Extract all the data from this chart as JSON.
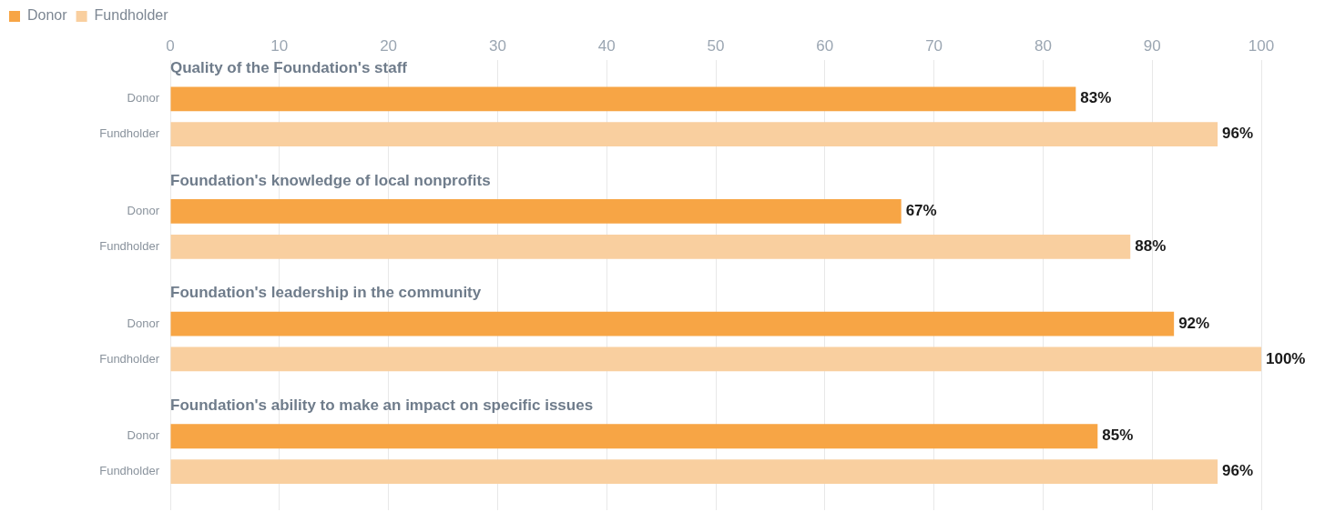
{
  "chart_data": {
    "type": "bar",
    "orientation": "horizontal",
    "categories": [
      "Quality of the Foundation's staff",
      "Foundation's knowledge of local nonprofits",
      "Foundation's leadership in the community",
      "Foundation's ability to make an impact on specific issues"
    ],
    "series": [
      {
        "name": "Donor",
        "color": "#f7a545",
        "values": [
          83,
          67,
          92,
          85
        ],
        "value_labels": [
          "83%",
          "67%",
          "92%",
          "85%"
        ]
      },
      {
        "name": "Fundholder",
        "color": "#f9cf9f",
        "values": [
          96,
          88,
          100,
          96
        ],
        "value_labels": [
          "96%",
          "88%",
          "100%",
          "96%"
        ]
      }
    ],
    "xlim": [
      0,
      100
    ],
    "xticks": [
      0,
      10,
      20,
      30,
      40,
      50,
      60,
      70,
      80,
      90,
      100
    ],
    "grid": "x",
    "legend": "top left"
  }
}
